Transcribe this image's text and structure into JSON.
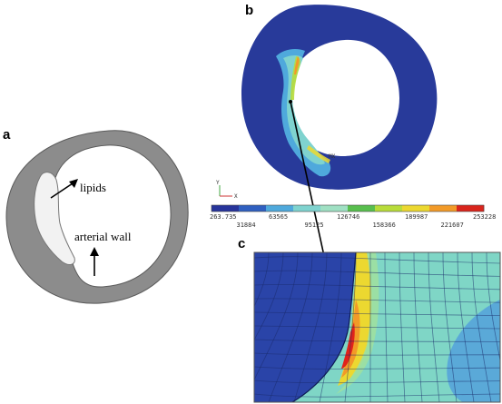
{
  "panels": {
    "a": {
      "letter": "a",
      "labels": {
        "lipids": "lipids",
        "arterial_wall": "arterial wall"
      }
    },
    "b": {
      "letter": "b",
      "marker": "MX"
    },
    "c": {
      "letter": "c"
    }
  },
  "colorbar": {
    "axis_letters": {
      "y": "Y",
      "x": "X"
    },
    "ticks_top": [
      "263.735",
      "63565",
      "126746",
      "189987",
      "253228"
    ],
    "ticks_bottom": [
      "31884",
      "95125",
      "158366",
      "221607"
    ],
    "colors": [
      "#27349b",
      "#2f5fc0",
      "#4fa9dc",
      "#7fd3cf",
      "#9fe0c3",
      "#58bf4e",
      "#b8dc3a",
      "#ecd830",
      "#f29a28",
      "#d9251c"
    ]
  },
  "colors": {
    "wall_gray": "#8c8c8c",
    "wall_outline": "#5a5a5a",
    "lipid_fill": "#f2f2f2",
    "ring_blue": "#283a9a",
    "mesh_blue": "#2a44a8",
    "mesh_cyan": "#7fd6c6",
    "peak_red": "#e0231b"
  }
}
